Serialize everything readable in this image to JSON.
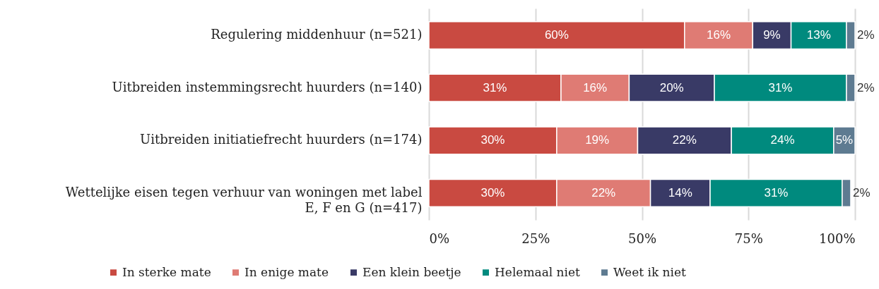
{
  "chart_data": {
    "type": "bar",
    "orientation": "horizontal",
    "stacked": true,
    "categories": [
      "Regulering middenhuur (n=521)",
      "Uitbreiden instemmingsrecht huurders (n=140)",
      "Uitbreiden initiatiefrecht  huurders (n=174)",
      "Wettelijke eisen tegen verhuur van woningen met label E, F en G (n=417)"
    ],
    "series": [
      {
        "name": "In sterke mate",
        "color": "#c94a41",
        "values": [
          60,
          31,
          30,
          30
        ],
        "value_labels": [
          "60%",
          "31%",
          "30%",
          "30%"
        ]
      },
      {
        "name": "In enige mate",
        "color": "#df7b74",
        "values": [
          16,
          16,
          19,
          22
        ],
        "value_labels": [
          "16%",
          "16%",
          "19%",
          "22%"
        ]
      },
      {
        "name": "Een klein beetje",
        "color": "#393a66",
        "values": [
          9,
          20,
          22,
          14
        ],
        "value_labels": [
          "9%",
          "20%",
          "22%",
          "14%"
        ]
      },
      {
        "name": "Helemaal niet",
        "color": "#008a7e",
        "values": [
          13,
          31,
          24,
          31
        ],
        "value_labels": [
          "13%",
          "31%",
          "24%",
          "31%"
        ]
      },
      {
        "name": "Weet ik niet",
        "color": "#5e7b91",
        "values": [
          2,
          2,
          5,
          2
        ],
        "value_labels": [
          "2%",
          "2%",
          "5%",
          "2%"
        ]
      }
    ],
    "xlim": [
      0,
      100
    ],
    "xticks": [
      {
        "value": 0,
        "label": "0%"
      },
      {
        "value": 25,
        "label": "25%"
      },
      {
        "value": 50,
        "label": "50%"
      },
      {
        "value": 75,
        "label": "75%"
      },
      {
        "value": 100,
        "label": "100%"
      }
    ],
    "grid": "x",
    "legend": "bottom"
  }
}
